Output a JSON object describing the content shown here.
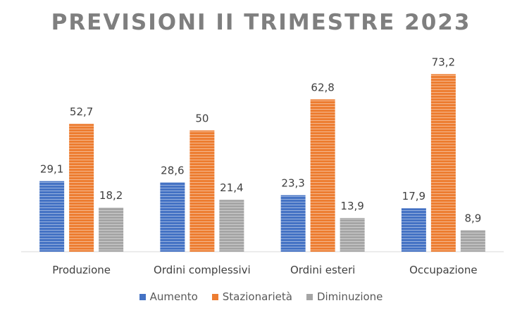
{
  "chart_data": {
    "type": "bar",
    "title": "PREVISIONI II TRIMESTRE 2023",
    "categories": [
      "Produzione",
      "Ordini complessivi",
      "Ordini esteri",
      "Occupazione"
    ],
    "series": [
      {
        "name": "Aumento",
        "color": "#4472c4",
        "values": [
          29.1,
          28.6,
          23.3,
          17.9
        ],
        "labels": [
          "29,1",
          "28,6",
          "23,3",
          "17,9"
        ]
      },
      {
        "name": "Stazionarietà",
        "color": "#ed7d31",
        "values": [
          52.7,
          50,
          62.8,
          73.2
        ],
        "labels": [
          "52,7",
          "50",
          "62,8",
          "73,2"
        ]
      },
      {
        "name": "Diminuzione",
        "color": "#a5a5a5",
        "values": [
          18.2,
          21.4,
          13.9,
          8.9
        ],
        "labels": [
          "18,2",
          "21,4",
          "13,9",
          "8,9"
        ]
      }
    ],
    "ylim": [
      0,
      85
    ],
    "grid": false,
    "legend_position": "bottom",
    "bar_style": "horizontal-striped"
  }
}
